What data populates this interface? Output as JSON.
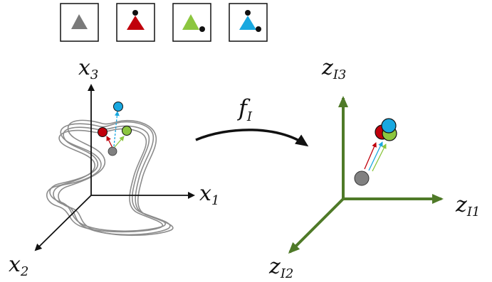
{
  "legend": {
    "items": [
      {
        "name": "gray-triangle",
        "color": "#7a7a7a",
        "dots": []
      },
      {
        "name": "red-triangle",
        "color": "#c0000b",
        "dots": [
          "top"
        ]
      },
      {
        "name": "green-triangle",
        "color": "#8cc63f",
        "dots": [
          "right"
        ]
      },
      {
        "name": "blue-triangle",
        "color": "#19a8e0",
        "dots": [
          "top",
          "right"
        ]
      }
    ]
  },
  "input_space": {
    "axes": {
      "x1": {
        "base": "x",
        "sub": "1"
      },
      "x2": {
        "base": "x",
        "sub": "2"
      },
      "x3": {
        "base": "x",
        "sub": "3"
      }
    }
  },
  "mapping": {
    "base": "f",
    "sub": "I"
  },
  "latent_space": {
    "axis_color": "#4f7a28",
    "axes": {
      "z1": {
        "base": "z",
        "sub": "I1"
      },
      "z2": {
        "base": "z",
        "sub": "I2"
      },
      "z3": {
        "base": "z",
        "sub": "I3"
      }
    }
  },
  "colors": {
    "gray": "#808080",
    "red": "#c0000b",
    "green": "#8cc63f",
    "blue": "#19a8e0",
    "curve": "#8c8c8c"
  }
}
